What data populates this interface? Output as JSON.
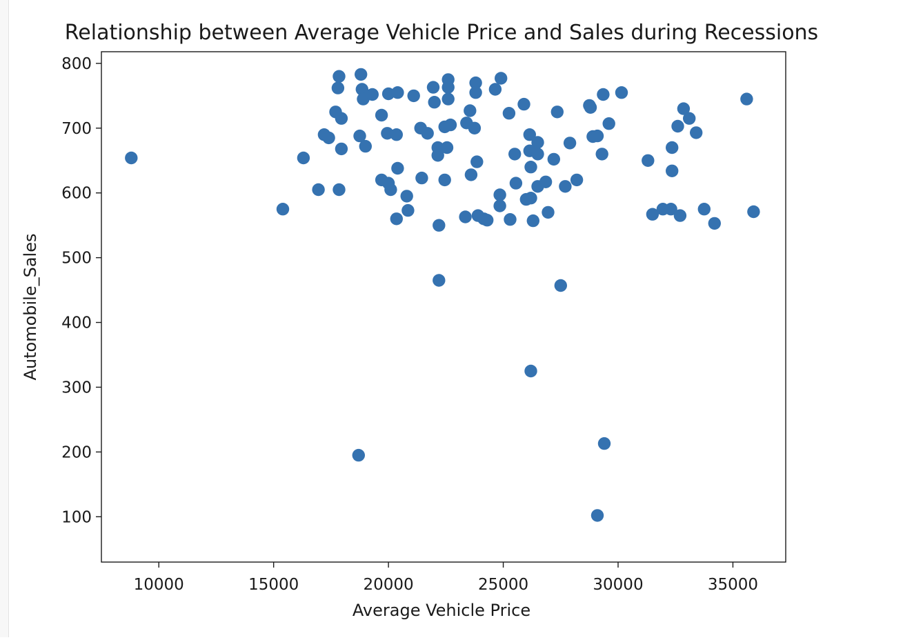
{
  "chart_data": {
    "type": "scatter",
    "title": "Relationship between Average Vehicle Price and Sales during Recessions",
    "xlabel": "Average Vehicle Price",
    "ylabel": "Automobile_Sales",
    "xlim": [
      7500,
      37300
    ],
    "ylim": [
      30,
      818
    ],
    "xticks": [
      10000,
      15000,
      20000,
      25000,
      30000,
      35000
    ],
    "yticks": [
      100,
      200,
      300,
      400,
      500,
      600,
      700,
      800
    ],
    "xtick_labels": [
      "10000",
      "15000",
      "20000",
      "25000",
      "30000",
      "35000"
    ],
    "ytick_labels": [
      "100",
      "200",
      "300",
      "400",
      "500",
      "600",
      "700",
      "800"
    ],
    "grid": false,
    "marker_color": "#3572b0",
    "points": [
      [
        8800,
        654
      ],
      [
        15400,
        575
      ],
      [
        16300,
        654
      ],
      [
        16950,
        605
      ],
      [
        17200,
        690
      ],
      [
        17400,
        685
      ],
      [
        17700,
        725
      ],
      [
        17800,
        762
      ],
      [
        17850,
        780
      ],
      [
        17850,
        605
      ],
      [
        17950,
        715
      ],
      [
        17950,
        668
      ],
      [
        18700,
        195
      ],
      [
        18750,
        688
      ],
      [
        18800,
        783
      ],
      [
        18850,
        760
      ],
      [
        18900,
        745
      ],
      [
        19000,
        672
      ],
      [
        19300,
        752
      ],
      [
        19700,
        720
      ],
      [
        19700,
        620
      ],
      [
        19950,
        692
      ],
      [
        20000,
        753
      ],
      [
        20000,
        615
      ],
      [
        20100,
        605
      ],
      [
        20350,
        690
      ],
      [
        20350,
        560
      ],
      [
        20400,
        755
      ],
      [
        20400,
        638
      ],
      [
        20800,
        595
      ],
      [
        20850,
        573
      ],
      [
        21100,
        750
      ],
      [
        21400,
        700
      ],
      [
        21450,
        623
      ],
      [
        21700,
        692
      ],
      [
        21950,
        763
      ],
      [
        22000,
        740
      ],
      [
        22150,
        670
      ],
      [
        22150,
        658
      ],
      [
        22200,
        550
      ],
      [
        22200,
        465
      ],
      [
        22450,
        702
      ],
      [
        22450,
        620
      ],
      [
        22550,
        670
      ],
      [
        22600,
        775
      ],
      [
        22600,
        763
      ],
      [
        22600,
        745
      ],
      [
        22700,
        705
      ],
      [
        23350,
        563
      ],
      [
        23400,
        708
      ],
      [
        23550,
        727
      ],
      [
        23600,
        628
      ],
      [
        23750,
        700
      ],
      [
        23800,
        770
      ],
      [
        23800,
        755
      ],
      [
        23850,
        648
      ],
      [
        23900,
        565
      ],
      [
        24150,
        560
      ],
      [
        24300,
        558
      ],
      [
        24650,
        760
      ],
      [
        24850,
        580
      ],
      [
        24850,
        597
      ],
      [
        24900,
        777
      ],
      [
        25250,
        723
      ],
      [
        25300,
        559
      ],
      [
        25500,
        660
      ],
      [
        25550,
        615
      ],
      [
        25900,
        737
      ],
      [
        26000,
        590
      ],
      [
        26150,
        690
      ],
      [
        26150,
        665
      ],
      [
        26200,
        640
      ],
      [
        26200,
        592
      ],
      [
        26200,
        325
      ],
      [
        26300,
        557
      ],
      [
        26500,
        678
      ],
      [
        26500,
        660
      ],
      [
        26500,
        610
      ],
      [
        26850,
        617
      ],
      [
        26950,
        570
      ],
      [
        27200,
        652
      ],
      [
        27350,
        725
      ],
      [
        27500,
        457
      ],
      [
        27700,
        610
      ],
      [
        27900,
        677
      ],
      [
        28200,
        620
      ],
      [
        28750,
        735
      ],
      [
        28800,
        732
      ],
      [
        28900,
        687
      ],
      [
        29100,
        688
      ],
      [
        29100,
        102
      ],
      [
        29300,
        660
      ],
      [
        29350,
        752
      ],
      [
        29400,
        213
      ],
      [
        29600,
        707
      ],
      [
        30150,
        755
      ],
      [
        31300,
        650
      ],
      [
        31500,
        567
      ],
      [
        31950,
        575
      ],
      [
        32300,
        575
      ],
      [
        32350,
        670
      ],
      [
        32350,
        634
      ],
      [
        32600,
        703
      ],
      [
        32700,
        565
      ],
      [
        32850,
        730
      ],
      [
        33100,
        715
      ],
      [
        33400,
        693
      ],
      [
        33750,
        575
      ],
      [
        34200,
        553
      ],
      [
        35600,
        745
      ],
      [
        35900,
        571
      ]
    ]
  }
}
